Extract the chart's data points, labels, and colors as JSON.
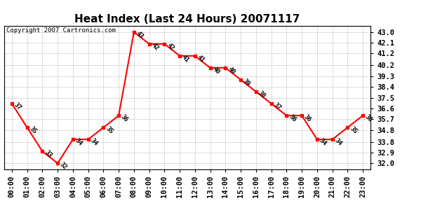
{
  "title": "Heat Index (Last 24 Hours) 20071117",
  "copyright": "Copyright 2007 Cartronics.com",
  "hours": [
    "00:00",
    "01:00",
    "02:00",
    "03:00",
    "04:00",
    "05:00",
    "06:00",
    "07:00",
    "08:00",
    "09:00",
    "10:00",
    "11:00",
    "12:00",
    "13:00",
    "14:00",
    "15:00",
    "16:00",
    "17:00",
    "18:00",
    "19:00",
    "20:00",
    "21:00",
    "22:00",
    "23:00"
  ],
  "values": [
    37,
    35,
    33,
    32,
    34,
    34,
    35,
    36,
    43,
    42,
    42,
    41,
    41,
    40,
    40,
    39,
    38,
    37,
    36,
    36,
    34,
    34,
    35,
    36
  ],
  "yticks": [
    32.0,
    32.9,
    33.8,
    34.8,
    35.7,
    36.6,
    37.5,
    38.4,
    39.3,
    40.2,
    41.2,
    42.1,
    43.0
  ],
  "ymin": 31.5,
  "ymax": 43.5,
  "line_color": "#ff0000",
  "marker_color": "#ff0000",
  "bg_color": "#ffffff",
  "grid_color": "#bbbbbb",
  "title_fontsize": 11,
  "label_fontsize": 6.5,
  "tick_fontsize": 7.5,
  "copyright_fontsize": 6.5
}
